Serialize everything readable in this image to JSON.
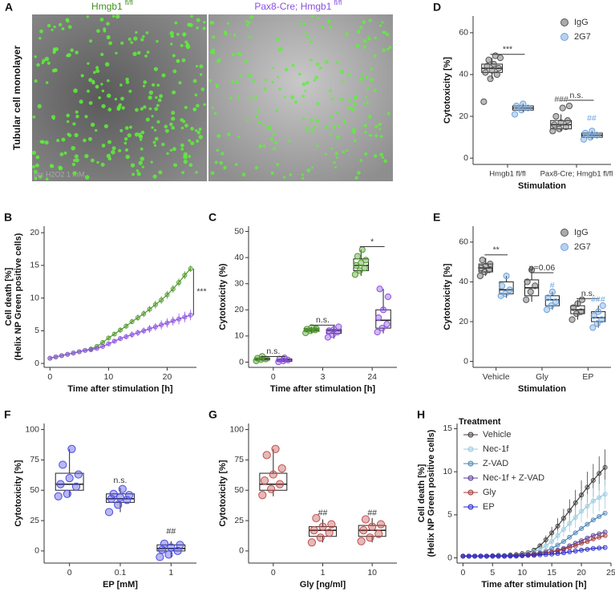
{
  "image_panel": {
    "label": "A",
    "title_left": "Hmgb1",
    "sup_left": "fl/fl",
    "title_right": "Pax8-Cre; Hmgb1",
    "sup_right": "fl/fl",
    "side_label": "Tubular cell monolayer",
    "watermark": "prx H2O2 1 mM"
  },
  "chart_data": [
    {
      "type": "line",
      "label": "B",
      "xlabel": "Time after stimulation [h]",
      "ylabel": [
        "Cell death [%]",
        "(Helix NP Green positive cells)"
      ],
      "x": [
        0,
        1,
        2,
        3,
        4,
        5,
        6,
        7,
        8,
        9,
        10,
        11,
        12,
        13,
        14,
        15,
        16,
        17,
        18,
        19,
        20,
        21,
        22,
        23,
        24
      ],
      "series": [
        {
          "color": "#4f9a2b",
          "values": [
            0.8,
            1.0,
            1.2,
            1.4,
            1.6,
            1.8,
            2.0,
            2.2,
            2.6,
            3.2,
            3.9,
            4.5,
            5.1,
            5.7,
            6.4,
            7.0,
            7.6,
            8.3,
            9.0,
            9.7,
            10.5,
            11.4,
            12.4,
            13.5,
            14.5
          ],
          "errors": [
            0.1,
            0.1,
            0.1,
            0.1,
            0.1,
            0.1,
            0.1,
            0.2,
            0.2,
            0.3,
            0.3,
            0.3,
            0.4,
            0.4,
            0.4,
            0.5,
            0.5,
            0.5,
            0.6,
            0.6,
            0.6,
            0.6,
            0.6,
            0.6,
            0.5
          ]
        },
        {
          "color": "#8a4fe0",
          "values": [
            0.8,
            1.0,
            1.2,
            1.4,
            1.6,
            1.8,
            2.0,
            2.1,
            2.3,
            2.6,
            3.0,
            3.4,
            3.8,
            4.1,
            4.4,
            4.7,
            5.0,
            5.3,
            5.6,
            5.9,
            6.2,
            6.5,
            6.8,
            7.1,
            7.4
          ],
          "errors": [
            0.1,
            0.1,
            0.1,
            0.1,
            0.1,
            0.1,
            0.1,
            0.2,
            0.2,
            0.3,
            0.3,
            0.3,
            0.4,
            0.4,
            0.5,
            0.5,
            0.5,
            0.6,
            0.6,
            0.7,
            0.7,
            0.7,
            0.8,
            0.8,
            0.8
          ]
        }
      ],
      "xlim": [
        -1,
        25
      ],
      "xticks": [
        0,
        10,
        20
      ],
      "ylim": [
        -0.6,
        21
      ],
      "yticks": [
        0,
        5,
        10,
        15,
        20
      ],
      "annotations": [
        "***"
      ]
    },
    {
      "type": "box",
      "label": "C",
      "xlabel": "Time after stimulation [h]",
      "ylabel": [
        "Cytotoxicity (%)"
      ],
      "categories": [
        "0",
        "3",
        "24"
      ],
      "series": [
        {
          "color": "#4f9a2b",
          "groups": [
            {
              "box": [
                0.5,
                0.8,
                1.2,
                1.6,
                2.5
              ],
              "points": [
                0.5,
                1,
                1.2,
                1.5,
                2.2
              ]
            },
            {
              "box": [
                11,
                11.8,
                12.3,
                12.8,
                13.5
              ],
              "points": [
                11.2,
                12,
                12.3,
                12.6,
                13.2,
                12.8
              ]
            },
            {
              "box": [
                33,
                35,
                37,
                39.5,
                43
              ],
              "points": [
                33.5,
                35,
                36,
                37,
                38,
                39,
                40.5,
                43
              ]
            }
          ]
        },
        {
          "color": "#8a4fe0",
          "groups": [
            {
              "box": [
                0,
                0.3,
                0.8,
                1.2,
                1.8
              ],
              "points": [
                0.1,
                0.5,
                0.8,
                1.2,
                1.6
              ]
            },
            {
              "box": [
                9,
                11,
                12,
                12.5,
                14
              ],
              "points": [
                9.5,
                10.5,
                11.5,
                12,
                12.5,
                13.5
              ]
            },
            {
              "box": [
                11,
                13,
                16,
                20,
                28
              ],
              "points": [
                11.5,
                13,
                14.5,
                17,
                20,
                25,
                28
              ]
            }
          ]
        }
      ],
      "ylim": [
        -2,
        52
      ],
      "yticks": [
        0,
        10,
        20,
        30,
        40,
        50
      ],
      "annotations": [
        "n.s.",
        "n.s.",
        "*"
      ]
    },
    {
      "type": "box",
      "label": "D",
      "xlabel": "Stimulation",
      "ylabel": [
        "Cytotoxicity [%]"
      ],
      "categories": [
        "Hmgb1 fl/fl",
        "Pax8-Cre; Hmgb1 fl/fl"
      ],
      "series": [
        {
          "name": "IgG",
          "color": "#555555",
          "groups": [
            {
              "box": [
                38,
                41,
                43,
                45,
                48
              ],
              "points": [
                27,
                38,
                40,
                41,
                42,
                43,
                44,
                45,
                48,
                47,
                49
              ]
            },
            {
              "box": [
                13,
                14,
                16,
                18,
                21
              ],
              "points": [
                13,
                14,
                15,
                16,
                17,
                18,
                20,
                24,
                25
              ]
            }
          ]
        },
        {
          "name": "2G7",
          "color": "#6fa3dd",
          "groups": [
            {
              "box": [
                22,
                23,
                24,
                25,
                26
              ],
              "points": [
                21,
                23,
                24,
                25,
                26
              ]
            },
            {
              "box": [
                9,
                10,
                11,
                12,
                13
              ],
              "points": [
                9,
                10,
                11,
                12,
                13
              ]
            }
          ]
        }
      ],
      "ylim": [
        -3,
        68
      ],
      "yticks": [
        0,
        20,
        40,
        60
      ],
      "annotations": [
        "***",
        "n.s.",
        "###",
        "##"
      ]
    },
    {
      "type": "box",
      "label": "E",
      "xlabel": "Stimulation",
      "ylabel": [
        "Cytotoxicity [%]"
      ],
      "categories": [
        "Vehicle",
        "Gly",
        "EP"
      ],
      "series": [
        {
          "name": "IgG",
          "color": "#555555",
          "groups": [
            {
              "box": [
                43,
                45,
                47,
                49,
                52
              ],
              "points": [
                43,
                45,
                46,
                47,
                48,
                49,
                51
              ]
            },
            {
              "box": [
                30,
                33,
                37,
                41,
                47
              ],
              "points": [
                31,
                35,
                38,
                40,
                46
              ]
            },
            {
              "box": [
                21,
                24,
                26,
                28,
                31
              ],
              "points": [
                21,
                24,
                25,
                27,
                29,
                31
              ]
            }
          ]
        },
        {
          "name": "2G7",
          "color": "#6fa3dd",
          "groups": [
            {
              "box": [
                32,
                34,
                36,
                40,
                43
              ],
              "points": [
                33,
                34,
                36,
                38,
                43
              ]
            },
            {
              "box": [
                26,
                28,
                31,
                33,
                35
              ],
              "points": [
                26,
                28,
                30,
                32,
                35
              ]
            },
            {
              "box": [
                17,
                20,
                22,
                25,
                28
              ],
              "points": [
                17,
                19,
                21,
                23,
                25,
                28
              ]
            }
          ]
        }
      ],
      "ylim": [
        -3,
        68
      ],
      "yticks": [
        0,
        20,
        40,
        60
      ],
      "annotations": [
        "**",
        "p=0.06",
        "#",
        "n.s.",
        "###"
      ]
    },
    {
      "type": "box",
      "label": "F",
      "xlabel": "EP [mM]",
      "ylabel": [
        "Cytotoxicity [%]"
      ],
      "categories": [
        "0",
        "0.1",
        "1"
      ],
      "series": [
        {
          "color": "#4a4ae0",
          "groups": [
            {
              "box": [
                45,
                50,
                55,
                64,
                84
              ],
              "points": [
                45,
                47,
                53,
                55,
                60,
                63,
                71,
                84
              ]
            },
            {
              "box": [
                32,
                40,
                43,
                47,
                52
              ],
              "points": [
                32,
                38,
                42,
                43,
                44,
                46,
                47,
                51
              ]
            },
            {
              "box": [
                -5,
                0,
                2,
                5,
                8
              ],
              "points": [
                -5,
                -3,
                0,
                1,
                3,
                5,
                6
              ]
            }
          ]
        }
      ],
      "ylim": [
        -10,
        105
      ],
      "yticks": [
        0,
        25,
        50,
        75,
        100
      ],
      "annotations": [
        "n.s.",
        "##"
      ]
    },
    {
      "type": "box",
      "label": "G",
      "xlabel": "Gly [ng/ml]",
      "ylabel": [
        "Cytotoxicity [%]"
      ],
      "categories": [
        "0",
        "1",
        "10"
      ],
      "series": [
        {
          "color": "#c0504d",
          "groups": [
            {
              "box": [
                45,
                50,
                55,
                64,
                84
              ],
              "points": [
                46,
                51,
                55,
                58,
                63,
                68,
                79,
                84
              ]
            },
            {
              "box": [
                7,
                12,
                17,
                20,
                26
              ],
              "points": [
                7,
                11,
                15,
                17,
                20,
                22,
                27
              ]
            },
            {
              "box": [
                7,
                12,
                17,
                21,
                27
              ],
              "points": [
                8,
                11,
                14,
                17,
                20,
                22,
                26
              ]
            }
          ]
        }
      ],
      "ylim": [
        -10,
        105
      ],
      "yticks": [
        0,
        25,
        50,
        75,
        100
      ],
      "annotations": [
        "##",
        "##"
      ]
    },
    {
      "type": "line",
      "label": "H",
      "xlabel": "Time after stimulation [h]",
      "ylabel": [
        "Cell death [%]",
        "(Helix NP Green positive cells)"
      ],
      "legend_title": "Treatment",
      "x": [
        0,
        1,
        2,
        3,
        4,
        5,
        6,
        7,
        8,
        9,
        10,
        11,
        12,
        13,
        14,
        15,
        16,
        17,
        18,
        19,
        20,
        21,
        22,
        23,
        24
      ],
      "series": [
        {
          "name": "Vehicle",
          "color": "#404040",
          "values": [
            0.2,
            0.2,
            0.2,
            0.2,
            0.2,
            0.25,
            0.3,
            0.3,
            0.35,
            0.4,
            0.5,
            0.6,
            0.9,
            1.4,
            2.1,
            2.9,
            3.7,
            4.6,
            5.5,
            6.4,
            7.3,
            8.2,
            9.0,
            9.8,
            10.5
          ],
          "errors": [
            0.05,
            0.05,
            0.05,
            0.05,
            0.05,
            0.05,
            0.05,
            0.05,
            0.05,
            0.1,
            0.1,
            0.1,
            0.2,
            0.3,
            0.5,
            0.7,
            0.9,
            1.1,
            1.3,
            1.5,
            1.7,
            1.8,
            1.9,
            2.0,
            2.1
          ]
        },
        {
          "name": "Nec-1f",
          "color": "#9ccbe0",
          "values": [
            0.2,
            0.2,
            0.2,
            0.2,
            0.2,
            0.2,
            0.25,
            0.3,
            0.3,
            0.35,
            0.4,
            0.5,
            0.7,
            1.0,
            1.4,
            1.9,
            2.6,
            3.3,
            4.0,
            4.7,
            5.4,
            6.0,
            6.6,
            7.0,
            7.4
          ],
          "errors": [
            0.05,
            0.05,
            0.05,
            0.05,
            0.05,
            0.05,
            0.05,
            0.05,
            0.05,
            0.05,
            0.1,
            0.1,
            0.1,
            0.2,
            0.3,
            0.5,
            0.6,
            0.8,
            1.0,
            1.2,
            1.3,
            1.4,
            1.5,
            1.6,
            1.7
          ]
        },
        {
          "name": "Z-VAD",
          "color": "#4e86b5",
          "values": [
            0.2,
            0.2,
            0.2,
            0.2,
            0.2,
            0.2,
            0.2,
            0.25,
            0.3,
            0.3,
            0.35,
            0.4,
            0.5,
            0.6,
            0.8,
            1.1,
            1.5,
            1.9,
            2.4,
            2.9,
            3.4,
            3.9,
            4.4,
            4.8,
            5.2
          ]
        },
        {
          "name": "Nec-1f + Z-VAD",
          "color": "#5a3e9a",
          "values": [
            0.2,
            0.2,
            0.2,
            0.2,
            0.2,
            0.2,
            0.2,
            0.2,
            0.25,
            0.3,
            0.3,
            0.35,
            0.4,
            0.5,
            0.6,
            0.7,
            0.9,
            1.1,
            1.4,
            1.7,
            2.0,
            2.3,
            2.6,
            2.8,
            3.0
          ]
        },
        {
          "name": "Gly",
          "color": "#a33a3a",
          "values": [
            0.2,
            0.2,
            0.2,
            0.2,
            0.2,
            0.2,
            0.2,
            0.2,
            0.25,
            0.3,
            0.3,
            0.35,
            0.4,
            0.5,
            0.6,
            0.7,
            0.8,
            1.0,
            1.2,
            1.4,
            1.7,
            1.9,
            2.2,
            2.4,
            2.6
          ]
        },
        {
          "name": "EP",
          "color": "#2929d0",
          "values": [
            0.2,
            0.2,
            0.2,
            0.2,
            0.2,
            0.2,
            0.2,
            0.2,
            0.2,
            0.2,
            0.25,
            0.3,
            0.3,
            0.35,
            0.4,
            0.45,
            0.5,
            0.6,
            0.7,
            0.8,
            0.9,
            1.0,
            1.1,
            1.15,
            1.2
          ]
        }
      ],
      "xlim": [
        -1,
        25
      ],
      "xticks": [
        0,
        5,
        10,
        15,
        20,
        25
      ],
      "ylim": [
        -0.6,
        15.6
      ],
      "yticks": [
        0,
        5,
        10,
        15
      ]
    }
  ]
}
